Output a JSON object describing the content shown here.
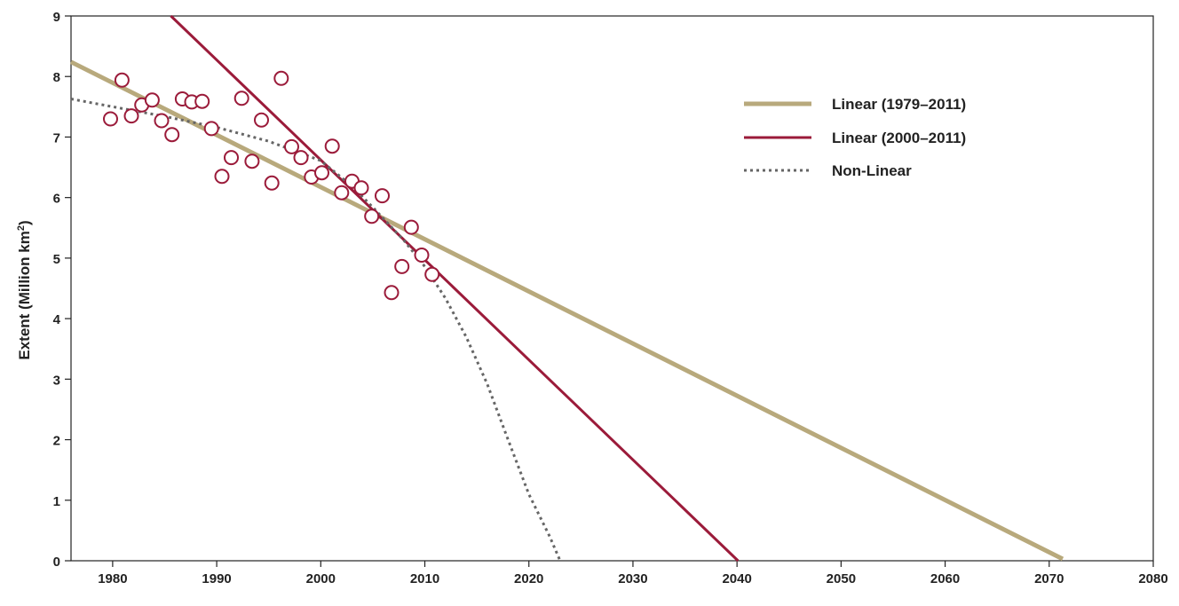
{
  "chart_data": {
    "type": "scatter",
    "title": "",
    "xlabel": "",
    "ylabel": "Extent (Million km²)",
    "xlim": [
      1976,
      2080
    ],
    "ylim": [
      0,
      9
    ],
    "x_ticks": [
      1980,
      1990,
      2000,
      2010,
      2020,
      2030,
      2040,
      2050,
      2060,
      2070,
      2080
    ],
    "y_ticks": [
      0,
      1,
      2,
      3,
      4,
      5,
      6,
      7,
      8,
      9
    ],
    "grid": false,
    "legend_position": "top-right",
    "colors": {
      "points": "#9b1b3a",
      "linear_1979_2011": "#b8a97c",
      "linear_2000_2011": "#9b1b3a",
      "non_linear": "#666666"
    },
    "series": [
      {
        "kind": "points",
        "x": [
          1979.8,
          1980.9,
          1981.8,
          1982.8,
          1983.8,
          1984.7,
          1985.7,
          1986.7,
          1987.6,
          1988.6,
          1989.5,
          1990.5,
          1991.4,
          1992.4,
          1993.4,
          1994.3,
          1995.3,
          1996.2,
          1997.2,
          1998.1,
          1999.1,
          2000.1,
          2001.1,
          2002.0,
          2003.0,
          2003.9,
          2004.9,
          2005.9,
          2006.8,
          2007.8,
          2008.7,
          2009.7,
          2010.7
        ],
        "y": [
          7.3,
          7.94,
          7.35,
          7.53,
          7.61,
          7.27,
          7.04,
          7.63,
          7.58,
          7.59,
          7.14,
          6.35,
          6.66,
          7.64,
          6.6,
          7.28,
          6.24,
          7.97,
          6.84,
          6.66,
          6.34,
          6.41,
          6.85,
          6.08,
          6.27,
          6.16,
          5.69,
          6.03,
          4.43,
          4.86,
          5.51,
          5.05,
          4.73
        ]
      },
      {
        "name": "Linear (1979–2011)",
        "kind": "line",
        "style": "solid",
        "x": [
          1976,
          2071.3
        ],
        "y": [
          8.24,
          0.03
        ]
      },
      {
        "name": "Linear (2000–2011)",
        "kind": "line",
        "style": "solid",
        "x": [
          1985.6,
          2040.1
        ],
        "y": [
          9.0,
          0.0
        ]
      },
      {
        "name": "Non-Linear",
        "kind": "line",
        "style": "dotted",
        "x": [
          1976,
          1980,
          1985,
          1990,
          1995,
          2000,
          2003,
          2005,
          2008,
          2010,
          2012,
          2014,
          2016,
          2018,
          2020,
          2022,
          2023
        ],
        "y": [
          7.63,
          7.5,
          7.34,
          7.16,
          6.93,
          6.61,
          6.19,
          5.84,
          5.29,
          4.86,
          4.33,
          3.69,
          2.92,
          2.0,
          1.1,
          0.4,
          0.0
        ]
      }
    ]
  }
}
